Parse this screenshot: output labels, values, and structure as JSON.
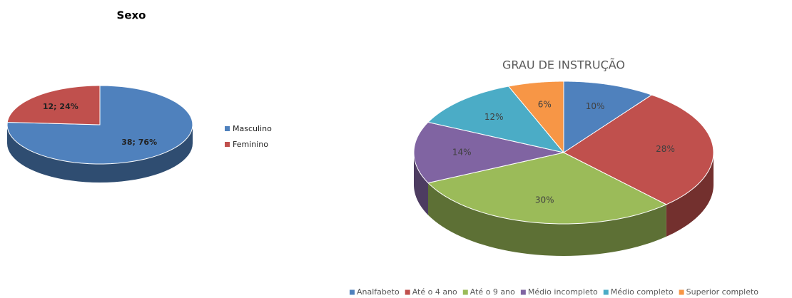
{
  "chart_data": [
    {
      "type": "pie",
      "title": "Sexo",
      "categories": [
        "Masculino",
        "Feminino"
      ],
      "values": [
        38,
        12
      ],
      "value_labels": [
        "38; 76%",
        "12; 24%"
      ],
      "colors": [
        "#4f81bd",
        "#c0504d"
      ],
      "legend": "right"
    },
    {
      "type": "pie",
      "title": "GRAU DE INSTRUÇÃO",
      "categories": [
        "Analfabeto",
        "Até o 4 ano",
        "Até o 9 ano",
        "Médio incompleto",
        "Médio completo",
        "Superior completo"
      ],
      "values": [
        10,
        28,
        30,
        14,
        12,
        6
      ],
      "value_labels": [
        "10%",
        "28%",
        "30%",
        "14%",
        "12%",
        "6%"
      ],
      "colors": [
        "#4f81bd",
        "#c0504d",
        "#9bbb59",
        "#8064a2",
        "#4bacc6",
        "#f79646"
      ],
      "legend": "bottom"
    }
  ]
}
